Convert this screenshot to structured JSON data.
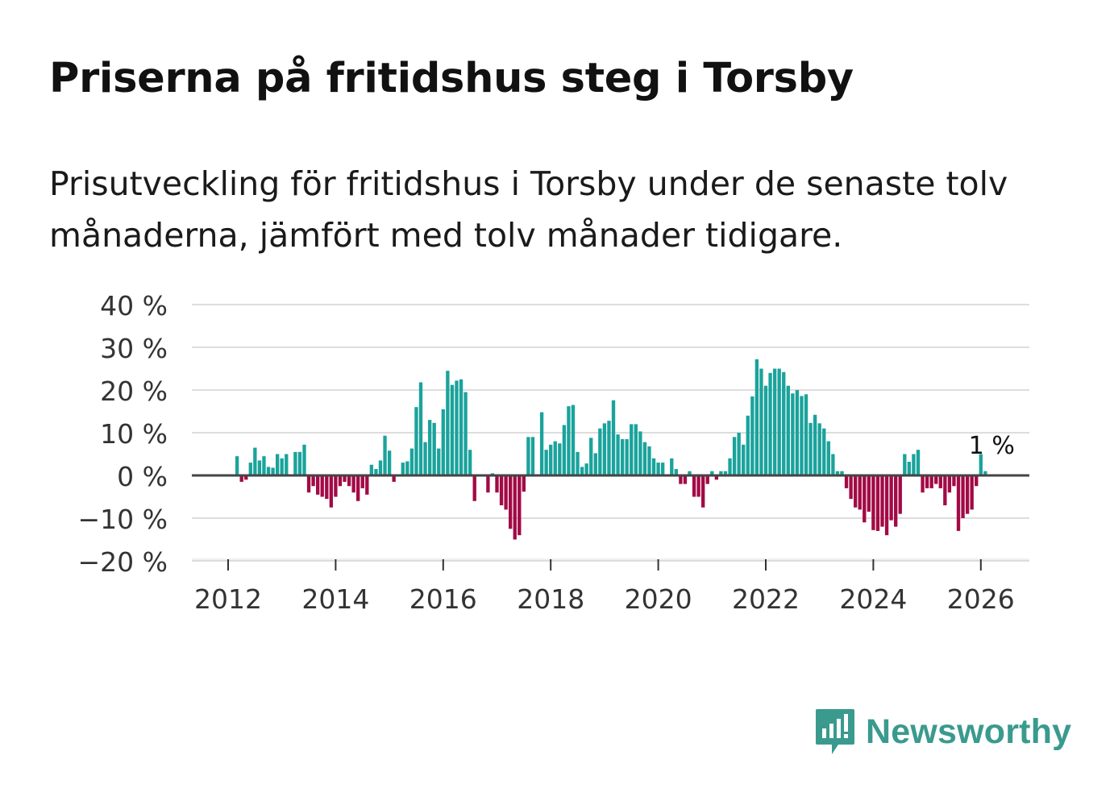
{
  "title": "Priserna på fritidshus steg i Torsby",
  "subtitle": "Prisutveckling för fritidshus i Torsby under de senaste tolv månaderna, jämfört med tolv månader tidigare.",
  "brand": "Newsworthy",
  "colors": {
    "positive": "#1aa39c",
    "negative": "#a20a46",
    "grid": "#dddddd",
    "zero": "#444444",
    "axis_text": "#333333",
    "brand": "#3a9a8e"
  },
  "chart_data": {
    "type": "bar",
    "ylim": [
      -20,
      40
    ],
    "yticks": [
      -20,
      -10,
      0,
      10,
      20,
      30,
      40
    ],
    "ytick_labels": [
      "−20 %",
      "−10 %",
      "0 %",
      "10 %",
      "20 %",
      "30 %",
      "40 %"
    ],
    "xticks": [
      2012,
      2014,
      2016,
      2018,
      2020,
      2022,
      2024,
      2026
    ],
    "xtick_labels": [
      "2012",
      "2014",
      "2016",
      "2018",
      "2020",
      "2022",
      "2024",
      "2026"
    ],
    "x_start": 2012.0,
    "x_step": 0.0833333,
    "annotation": {
      "label": "1 %",
      "index": 169
    },
    "values": [
      null,
      null,
      4.5,
      -1.5,
      -1,
      3,
      6.5,
      3.5,
      4.5,
      2,
      1.8,
      5,
      4,
      5,
      null,
      5.5,
      5.5,
      7.2,
      -4,
      -2.5,
      -4.5,
      -5,
      -5.5,
      -7.5,
      -5,
      -2.5,
      -1.5,
      -2.5,
      -4,
      -6,
      -3,
      -4.5,
      2.5,
      1.5,
      3.5,
      9.3,
      5.8,
      -1.5,
      null,
      3,
      3.3,
      6.3,
      16,
      21.8,
      7.8,
      13,
      12.3,
      6.3,
      15.5,
      24.5,
      21.2,
      22.2,
      22.5,
      19.5,
      6,
      -6,
      null,
      null,
      -4,
      0.5,
      -4,
      -7,
      -8,
      -12.5,
      -15,
      -14,
      -3.8,
      9,
      9,
      null,
      14.8,
      6,
      7.2,
      8,
      7.5,
      11.8,
      16.2,
      16.5,
      5.5,
      2,
      2.8,
      8.8,
      5.2,
      11,
      12.2,
      12.8,
      17.6,
      9.6,
      8.5,
      8.5,
      12,
      12,
      10.3,
      7.8,
      6.8,
      4,
      3,
      3,
      null,
      4,
      1.5,
      -2,
      -2,
      1,
      -5,
      -5,
      -7.5,
      -2,
      1,
      -1,
      1,
      1,
      4,
      9,
      10,
      7.2,
      14,
      18.5,
      27.2,
      25,
      21,
      24,
      25,
      25,
      24.2,
      21,
      19.2,
      20,
      18.6,
      19,
      12.3,
      14.2,
      12.2,
      11,
      8,
      5,
      1,
      1,
      -3,
      -5.5,
      -7.5,
      -8,
      -11,
      -8.5,
      -12.8,
      -13,
      -12,
      -14,
      -10.5,
      -12,
      -9,
      5,
      3.2,
      5,
      6,
      -4,
      -3,
      -3,
      -2,
      -3,
      -7,
      -4,
      -2.5,
      -13,
      -10,
      -9,
      -8,
      -2.5,
      5,
      1
    ]
  }
}
